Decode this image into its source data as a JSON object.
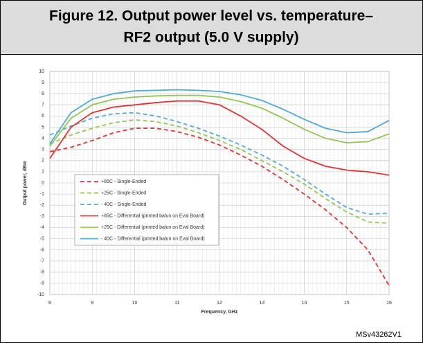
{
  "chart_data": {
    "type": "line",
    "title": [
      "Figure 12. Output power level vs. temperature–",
      "RF2 output (5.0 V supply)"
    ],
    "xlabel": "Frequency, GHz",
    "ylabel": "Output power, dBm",
    "footer": "MSv43262V1",
    "x": [
      8,
      8.5,
      9,
      9.5,
      10,
      10.5,
      11,
      11.5,
      12,
      12.5,
      13,
      13.5,
      14,
      14.5,
      15,
      15.5,
      16
    ],
    "series": [
      {
        "name": "+85C - Single-Ended",
        "color": "#e8312f",
        "dashed": true,
        "values": [
          2.8,
          3.2,
          3.8,
          4.5,
          4.9,
          4.9,
          4.6,
          4.1,
          3.4,
          2.5,
          1.5,
          0.3,
          -1.0,
          -2.4,
          -4.0,
          -6.0,
          -9.2
        ]
      },
      {
        "name": "+25C - Single-Ended",
        "color": "#92c84a",
        "dashed": true,
        "values": [
          3.5,
          4.3,
          4.9,
          5.4,
          5.65,
          5.5,
          5.1,
          4.5,
          3.8,
          3.0,
          2.0,
          1.0,
          -0.1,
          -1.4,
          -2.6,
          -3.5,
          -3.6
        ]
      },
      {
        "name": "- 40C - Single-Ended",
        "color": "#4aacd9",
        "dashed": true,
        "values": [
          4.3,
          5.1,
          5.8,
          6.2,
          6.3,
          6.0,
          5.5,
          4.9,
          4.2,
          3.4,
          2.5,
          1.5,
          0.3,
          -1.0,
          -2.2,
          -2.8,
          -2.7
        ]
      },
      {
        "name": "+85C - Differential (printed balun on Eval Board)",
        "color": "#e8312f",
        "dashed": false,
        "values": [
          2.2,
          5.0,
          6.3,
          6.8,
          7.0,
          7.2,
          7.35,
          7.35,
          7.0,
          6.0,
          4.8,
          3.3,
          2.2,
          1.5,
          1.15,
          1.0,
          0.7
        ]
      },
      {
        "name": "+25C - Differential (printed balun on Eval Board)",
        "color": "#92c84a",
        "dashed": false,
        "values": [
          3.3,
          5.8,
          7.0,
          7.5,
          7.7,
          7.8,
          7.85,
          7.85,
          7.7,
          7.3,
          6.7,
          5.8,
          4.8,
          4.0,
          3.6,
          3.7,
          4.4
        ]
      },
      {
        "name": "- 40C - Differential (printed balun on Eval Board)",
        "color": "#4aacd9",
        "dashed": false,
        "values": [
          3.5,
          6.3,
          7.5,
          8.0,
          8.25,
          8.3,
          8.35,
          8.3,
          8.2,
          7.9,
          7.4,
          6.6,
          5.7,
          4.9,
          4.5,
          4.6,
          5.6
        ]
      }
    ],
    "xlim": [
      8,
      16
    ],
    "xticks": [
      8,
      9,
      10,
      11,
      12,
      13,
      14,
      15,
      16
    ],
    "ylim": [
      -10,
      10
    ],
    "yticks": [
      -10,
      -9,
      -8,
      -7,
      -6,
      -5,
      -4,
      -3,
      -2,
      -1,
      0,
      1,
      2,
      3,
      4,
      5,
      6,
      7,
      8,
      9,
      10
    ],
    "grid": true
  }
}
